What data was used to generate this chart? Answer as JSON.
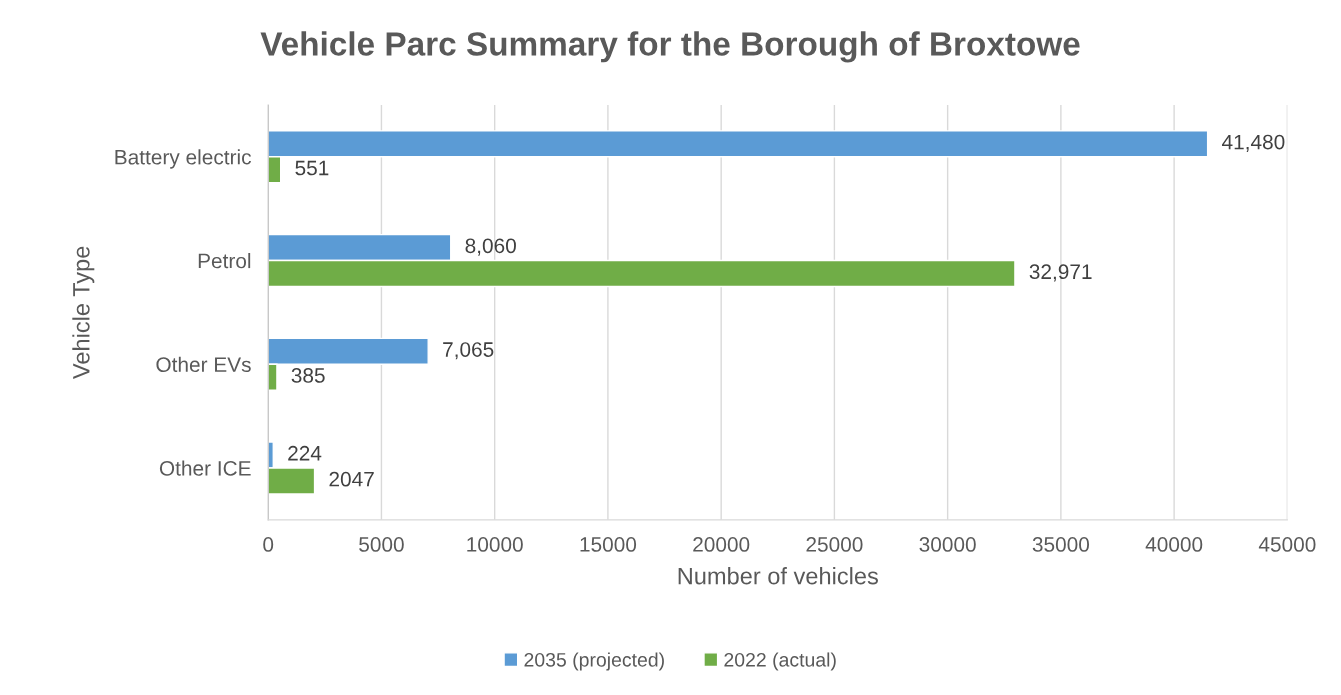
{
  "chart_data": {
    "type": "bar",
    "orientation": "horizontal",
    "title": "Vehicle Parc Summary for the Borough of Broxtowe",
    "xlabel": "Number of vehicles",
    "ylabel": "Vehicle Type",
    "categories": [
      "Battery electric",
      "Petrol",
      "Other EVs",
      "Other ICE"
    ],
    "series": [
      {
        "name": "2035 (projected)",
        "color": "#5b9bd5",
        "values": [
          41480,
          8060,
          7065,
          224
        ],
        "value_labels": [
          "41,480",
          "8,060",
          "7,065",
          "224"
        ]
      },
      {
        "name": "2022 (actual)",
        "color": "#70ad47",
        "values": [
          551,
          32971,
          385,
          2047
        ],
        "value_labels": [
          "551",
          "32,971",
          "385",
          "2047"
        ]
      }
    ],
    "xlim": [
      0,
      45000
    ],
    "xticks": [
      0,
      5000,
      10000,
      15000,
      20000,
      25000,
      30000,
      35000,
      40000,
      45000
    ],
    "grid": "x",
    "legend": "bottom"
  }
}
